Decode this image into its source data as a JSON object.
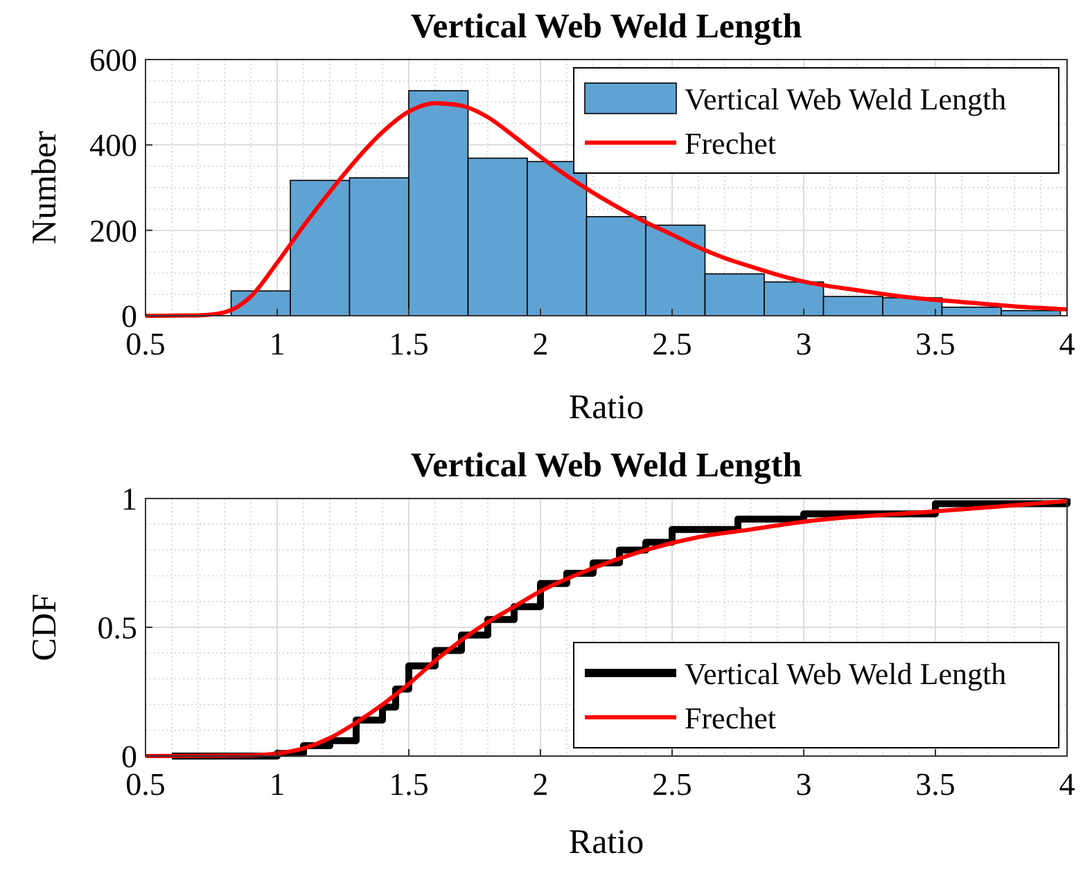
{
  "chart_data": [
    {
      "type": "histogram",
      "title": "Vertical Web Weld Length",
      "xlabel": "Ratio",
      "ylabel": "Number",
      "xlim": [
        0.5,
        4
      ],
      "xticks": [
        0.5,
        1,
        1.5,
        2,
        2.5,
        3,
        3.5,
        4
      ],
      "ylim": [
        0,
        600
      ],
      "yticks": [
        0,
        200,
        400,
        600
      ],
      "grid": true,
      "legend": "top right",
      "series": [
        {
          "name": "Vertical Web Weld Length",
          "color": "#5fa3d3",
          "bins": [
            0.825,
            1.05,
            1.275,
            1.5,
            1.725,
            1.95,
            2.175,
            2.4,
            2.625,
            2.85,
            3.075,
            3.3,
            3.525,
            3.75,
            3.975
          ],
          "values": [
            58,
            317,
            323,
            527,
            369,
            361,
            232,
            212,
            98,
            79,
            45,
            42,
            20,
            12
          ]
        },
        {
          "type": "line",
          "name": "Frechet",
          "color": "#ff0000",
          "x": [
            0.5,
            0.7,
            0.8,
            0.9,
            1.0,
            1.1,
            1.2,
            1.3,
            1.4,
            1.5,
            1.6,
            1.7,
            1.8,
            1.9,
            2.0,
            2.1,
            2.2,
            2.3,
            2.4,
            2.5,
            2.6,
            2.7,
            2.8,
            2.9,
            3.0,
            3.2,
            3.4,
            3.6,
            3.8,
            4.0
          ],
          "values": [
            0,
            1,
            8,
            45,
            124,
            210,
            290,
            365,
            430,
            478,
            498,
            492,
            465,
            420,
            372,
            328,
            288,
            252,
            219,
            190,
            160,
            135,
            115,
            96,
            80,
            60,
            43,
            32,
            22,
            15
          ]
        }
      ]
    },
    {
      "type": "line",
      "title": "Vertical Web Weld Length",
      "xlabel": "Ratio",
      "ylabel": "CDF",
      "xlim": [
        0.5,
        4
      ],
      "xticks": [
        0.5,
        1,
        1.5,
        2,
        2.5,
        3,
        3.5,
        4
      ],
      "ylim": [
        0,
        1
      ],
      "yticks": [
        0,
        0.5,
        1
      ],
      "grid": true,
      "legend": "bottom right",
      "series": [
        {
          "type": "step",
          "name": "Vertical Web Weld Length",
          "color": "#000000",
          "x": [
            0.6,
            1.0,
            1.1,
            1.2,
            1.3,
            1.4,
            1.45,
            1.5,
            1.6,
            1.7,
            1.8,
            1.9,
            2.0,
            2.1,
            2.2,
            2.3,
            2.4,
            2.5,
            2.75,
            3.0,
            3.5,
            4.0
          ],
          "values": [
            0,
            0.01,
            0.04,
            0.06,
            0.14,
            0.19,
            0.26,
            0.35,
            0.41,
            0.47,
            0.53,
            0.58,
            0.67,
            0.71,
            0.75,
            0.8,
            0.83,
            0.88,
            0.92,
            0.94,
            0.98,
            1.0
          ]
        },
        {
          "name": "Frechet",
          "color": "#ff0000",
          "x": [
            0.5,
            0.9,
            1.0,
            1.1,
            1.2,
            1.3,
            1.4,
            1.5,
            1.6,
            1.7,
            1.8,
            1.9,
            2.0,
            2.2,
            2.4,
            2.6,
            2.8,
            3.0,
            3.5,
            4.0
          ],
          "values": [
            0,
            0.003,
            0.01,
            0.03,
            0.07,
            0.13,
            0.2,
            0.28,
            0.37,
            0.45,
            0.52,
            0.58,
            0.64,
            0.73,
            0.8,
            0.85,
            0.88,
            0.91,
            0.95,
            0.99
          ]
        }
      ]
    }
  ]
}
